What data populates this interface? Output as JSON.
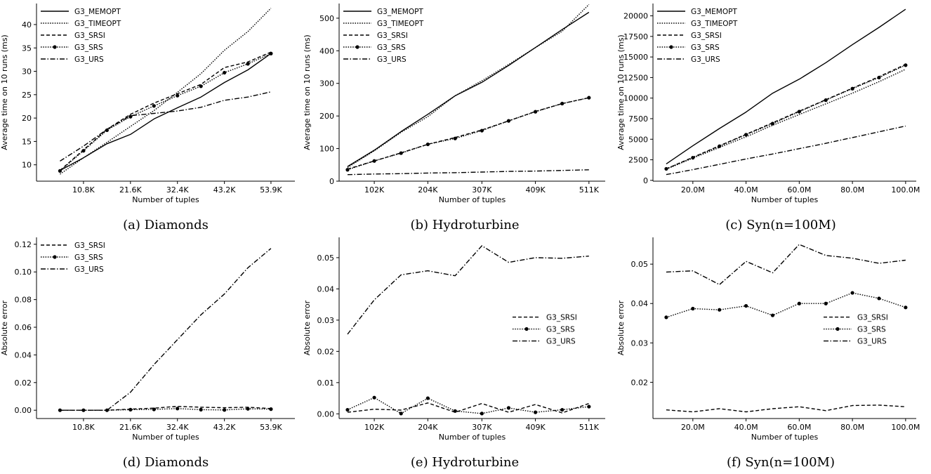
{
  "styles": {
    "G3_MEMOPT": {
      "dash": "",
      "marker": false
    },
    "G3_TIMEOPT": {
      "dash": "1.5,1.8",
      "marker": false
    },
    "G3_SRSI": {
      "dash": "5,3",
      "marker": false
    },
    "G3_SRS": {
      "dash": "1.5,1.8",
      "marker": true
    },
    "G3_URS": {
      "dash": "7,2.5,1.5,2.5",
      "marker": false
    }
  },
  "chart_data": [
    {
      "id": "a",
      "type": "line",
      "caption": "(a) Diamonds",
      "xlabel": "Number of tuples",
      "ylabel": "Average time on 10 runs (ms)",
      "xlim": [
        0,
        59.4
      ],
      "ylim": [
        6.5,
        44.5
      ],
      "xticks": [
        10.8,
        21.6,
        32.4,
        43.2,
        53.9
      ],
      "xticklabels": [
        "10.8K",
        "21.6K",
        "32.4K",
        "43.2K",
        "53.9K"
      ],
      "yticks": [
        10,
        15,
        20,
        25,
        30,
        35,
        40
      ],
      "yticklabels": [
        "10",
        "15",
        "20",
        "25",
        "30",
        "35",
        "40"
      ],
      "legend": "top-left",
      "x": [
        5.4,
        10.8,
        16.2,
        21.6,
        27.0,
        32.4,
        37.8,
        43.2,
        48.6,
        53.9
      ],
      "series": [
        {
          "name": "G3_MEMOPT",
          "values": [
            8.8,
            11.5,
            14.5,
            16.5,
            19.8,
            22.2,
            24.5,
            27.6,
            30.3,
            33.8
          ]
        },
        {
          "name": "G3_TIMEOPT",
          "values": [
            8.0,
            11.5,
            14.8,
            18.2,
            21.6,
            25.5,
            29.5,
            34.5,
            38.5,
            43.5
          ]
        },
        {
          "name": "G3_SRSI",
          "values": [
            8.8,
            13.2,
            17.6,
            20.8,
            23.2,
            25.2,
            27.2,
            30.8,
            32.0,
            34.1
          ]
        },
        {
          "name": "G3_SRS",
          "values": [
            8.7,
            13.0,
            17.4,
            20.3,
            22.6,
            24.8,
            26.8,
            29.7,
            31.6,
            33.8
          ]
        },
        {
          "name": "G3_URS",
          "values": [
            10.8,
            14.0,
            17.6,
            20.5,
            21.0,
            21.5,
            22.3,
            23.8,
            24.5,
            25.6
          ]
        }
      ]
    },
    {
      "id": "b",
      "type": "line",
      "caption": "(b) Hydroturbine",
      "xlabel": "Number of tuples",
      "ylabel": "Average time on 10 runs (ms)",
      "xlim": [
        35,
        542
      ],
      "ylim": [
        0,
        545
      ],
      "xticks": [
        102,
        204,
        307,
        409,
        511
      ],
      "xticklabels": [
        "102K",
        "204K",
        "307K",
        "409K",
        "511K"
      ],
      "yticks": [
        0,
        100,
        200,
        300,
        400,
        500
      ],
      "yticklabels": [
        "0",
        "100",
        "200",
        "300",
        "400",
        "500"
      ],
      "legend": "top-left",
      "x": [
        51,
        102,
        153,
        204,
        256,
        307,
        358,
        409,
        460,
        511
      ],
      "series": [
        {
          "name": "G3_MEMOPT",
          "values": [
            45,
            95,
            152,
            205,
            262,
            303,
            355,
            410,
            465,
            518
          ]
        },
        {
          "name": "G3_TIMEOPT",
          "values": [
            42,
            93,
            150,
            198,
            262,
            308,
            358,
            410,
            460,
            542
          ]
        },
        {
          "name": "G3_SRSI",
          "values": [
            37,
            62,
            87,
            113,
            134,
            157,
            185,
            214,
            238,
            256
          ]
        },
        {
          "name": "G3_SRS",
          "values": [
            35,
            62,
            86,
            113,
            131,
            155,
            185,
            213,
            238,
            256
          ]
        },
        {
          "name": "G3_URS",
          "values": [
            20,
            22,
            23,
            25,
            26,
            28,
            30,
            31,
            33,
            35
          ]
        }
      ]
    },
    {
      "id": "c",
      "type": "line",
      "caption": "(c) Syn(n=100M)",
      "xlabel": "Number of tuples",
      "ylabel": "Average time on 10 runs (ms)",
      "xlim": [
        5,
        104
      ],
      "ylim": [
        -100,
        21500
      ],
      "xticks": [
        20,
        40,
        60,
        80,
        100
      ],
      "xticklabels": [
        "20.0M",
        "40.0M",
        "60.0M",
        "80.0M",
        "100.0M"
      ],
      "yticks": [
        0,
        2500,
        5000,
        7500,
        10000,
        12500,
        15000,
        17500,
        20000
      ],
      "yticklabels": [
        "0",
        "2500",
        "5000",
        "7500",
        "10000",
        "12500",
        "15000",
        "17500",
        "20000"
      ],
      "legend": "top-left",
      "x": [
        10,
        20,
        30,
        40,
        50,
        60,
        70,
        80,
        90,
        100
      ],
      "series": [
        {
          "name": "G3_MEMOPT",
          "values": [
            2000,
            4200,
            6300,
            8300,
            10600,
            12300,
            14300,
            16500,
            18600,
            20800
          ]
        },
        {
          "name": "G3_TIMEOPT",
          "values": [
            1350,
            2700,
            4000,
            5300,
            6700,
            8000,
            9300,
            10600,
            12000,
            13500
          ]
        },
        {
          "name": "G3_SRSI",
          "values": [
            1400,
            2800,
            4200,
            5600,
            7000,
            8400,
            9800,
            11200,
            12600,
            14100
          ]
        },
        {
          "name": "G3_SRS",
          "values": [
            1400,
            2750,
            4150,
            5550,
            6900,
            8350,
            9750,
            11150,
            12500,
            14000
          ]
        },
        {
          "name": "G3_URS",
          "values": [
            700,
            1300,
            1950,
            2600,
            3200,
            3850,
            4500,
            5200,
            5900,
            6600
          ]
        }
      ]
    },
    {
      "id": "d",
      "type": "line",
      "caption": "(d) Diamonds",
      "xlabel": "Number of tuples",
      "ylabel": "Absolute error",
      "xlim": [
        0,
        59.4
      ],
      "ylim": [
        -0.006,
        0.125
      ],
      "xticks": [
        10.8,
        21.6,
        32.4,
        43.2,
        53.9
      ],
      "xticklabels": [
        "10.8K",
        "21.6K",
        "32.4K",
        "43.2K",
        "53.9K"
      ],
      "yticks": [
        0.0,
        0.02,
        0.04,
        0.06,
        0.08,
        0.1,
        0.12
      ],
      "yticklabels": [
        "0.00",
        "0.02",
        "0.04",
        "0.06",
        "0.08",
        "0.10",
        "0.12"
      ],
      "legend": "top-left",
      "x": [
        5.4,
        10.8,
        16.2,
        21.6,
        27.0,
        32.4,
        37.8,
        43.2,
        48.6,
        53.9
      ],
      "series": [
        {
          "name": "G3_SRSI",
          "values": [
            0.0,
            0.0,
            0.0,
            0.0008,
            0.0015,
            0.0028,
            0.0022,
            0.0018,
            0.0022,
            0.0012
          ]
        },
        {
          "name": "G3_SRS",
          "values": [
            0.0,
            0.0,
            0.0,
            0.0004,
            0.0006,
            0.0012,
            0.0004,
            0.0002,
            0.001,
            0.0008
          ]
        },
        {
          "name": "G3_URS",
          "values": [
            0.0,
            0.0,
            0.0,
            0.013,
            0.033,
            0.051,
            0.069,
            0.084,
            0.103,
            0.117
          ]
        }
      ]
    },
    {
      "id": "e",
      "type": "line",
      "caption": "(e) Hydroturbine",
      "xlabel": "Number of tuples",
      "ylabel": "Absolute error",
      "xlim": [
        35,
        542
      ],
      "ylim": [
        -0.0015,
        0.0565
      ],
      "xticks": [
        102,
        204,
        307,
        409,
        511
      ],
      "xticklabels": [
        "102K",
        "204K",
        "307K",
        "409K",
        "511K"
      ],
      "yticks": [
        0.0,
        0.01,
        0.02,
        0.03,
        0.04,
        0.05
      ],
      "yticklabels": [
        "0.00",
        "0.01",
        "0.02",
        "0.03",
        "0.04",
        "0.05"
      ],
      "legend": "center-right",
      "x": [
        51,
        102,
        153,
        204,
        256,
        307,
        358,
        409,
        460,
        511
      ],
      "series": [
        {
          "name": "G3_SRSI",
          "values": [
            0.0005,
            0.0015,
            0.0012,
            0.0035,
            0.0005,
            0.0033,
            0.0005,
            0.003,
            0.0003,
            0.0033
          ]
        },
        {
          "name": "G3_SRS",
          "values": [
            0.0013,
            0.0052,
            0.0001,
            0.005,
            0.0009,
            0.0001,
            0.0019,
            0.0005,
            0.0013,
            0.0023
          ]
        },
        {
          "name": "G3_URS",
          "values": [
            0.0255,
            0.0365,
            0.0445,
            0.0458,
            0.0442,
            0.0538,
            0.0485,
            0.05,
            0.0498,
            0.0505
          ]
        }
      ]
    },
    {
      "id": "f",
      "type": "line",
      "caption": "(f) Syn(n=100M)",
      "xlabel": "Number of tuples",
      "ylabel": "Absolute error",
      "xlim": [
        5,
        104
      ],
      "ylim": [
        0.0108,
        0.0568
      ],
      "xticks": [
        20,
        40,
        60,
        80,
        100
      ],
      "xticklabels": [
        "20.0M",
        "40.0M",
        "60.0M",
        "80.0M",
        "100.0M"
      ],
      "yticks": [
        0.02,
        0.03,
        0.04,
        0.05
      ],
      "yticklabels": [
        "0.02",
        "0.03",
        "0.04",
        "0.05"
      ],
      "legend": "center-right",
      "x": [
        10,
        20,
        30,
        40,
        50,
        60,
        70,
        80,
        90,
        100
      ],
      "series": [
        {
          "name": "G3_SRSI",
          "values": [
            0.013,
            0.0125,
            0.0133,
            0.0125,
            0.0133,
            0.0138,
            0.0128,
            0.0141,
            0.0142,
            0.0138
          ]
        },
        {
          "name": "G3_SRS",
          "values": [
            0.0365,
            0.0387,
            0.0384,
            0.0394,
            0.037,
            0.04,
            0.04,
            0.0427,
            0.0413,
            0.039
          ]
        },
        {
          "name": "G3_URS",
          "values": [
            0.048,
            0.0483,
            0.0448,
            0.0507,
            0.0478,
            0.055,
            0.0522,
            0.0515,
            0.0502,
            0.051
          ]
        }
      ]
    }
  ]
}
